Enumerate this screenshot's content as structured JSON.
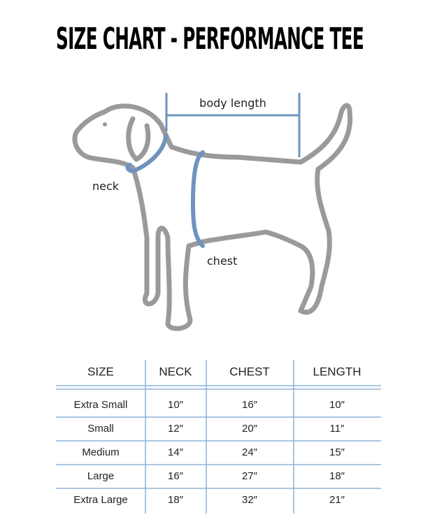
{
  "header": {
    "title": "SIZE CHART - PERFORMANCE TEE"
  },
  "diagram": {
    "labels": {
      "body_length": "body length",
      "neck": "neck",
      "chest": "chest"
    }
  },
  "table": {
    "columns": [
      "SIZE",
      "NECK",
      "CHEST",
      "LENGTH"
    ],
    "rows": [
      [
        "Extra Small",
        "10″",
        "16″",
        "10″"
      ],
      [
        "Small",
        "12″",
        "20″",
        "11″"
      ],
      [
        "Medium",
        "14″",
        "24″",
        "15″"
      ],
      [
        "Large",
        "16″",
        "27″",
        "18″"
      ],
      [
        "Extra Large",
        "18″",
        "32″",
        "21″"
      ]
    ]
  }
}
